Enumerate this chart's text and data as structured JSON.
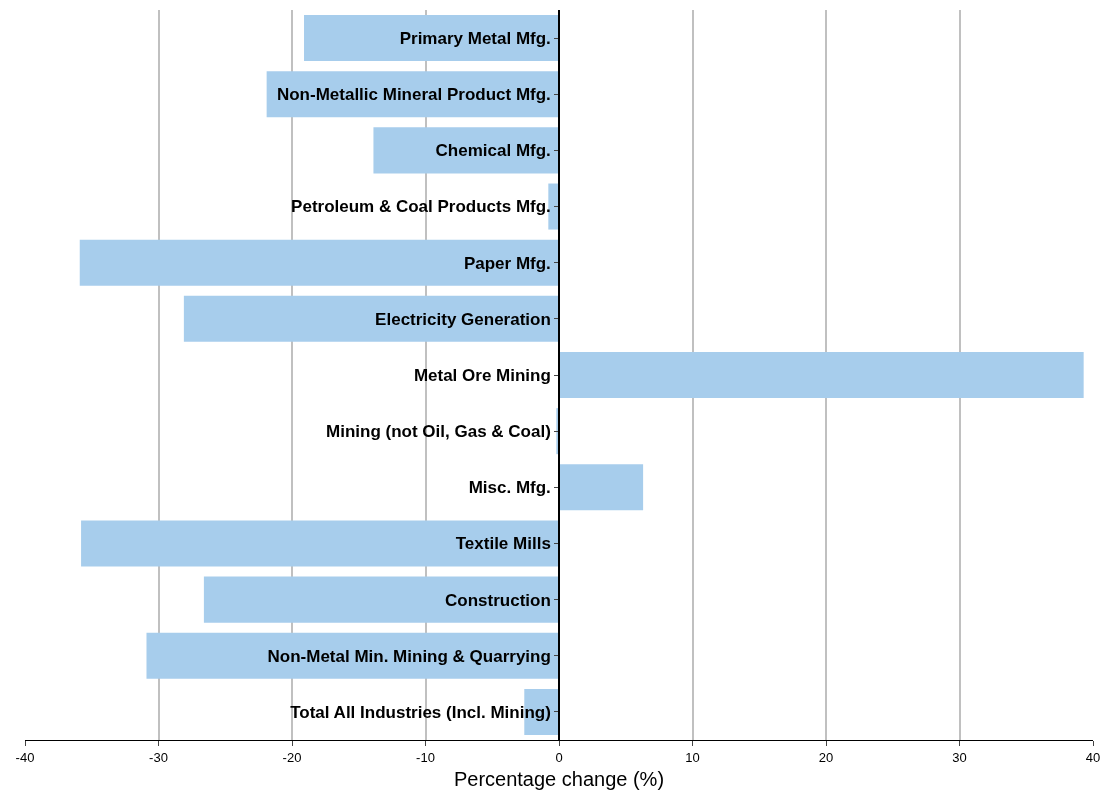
{
  "chart_data": {
    "type": "bar",
    "orientation": "horizontal",
    "xlabel": "Percentage change (%)",
    "categories": [
      "Primary Metal Mfg.",
      "Non-Metallic Mineral Product Mfg.",
      "Chemical Mfg.",
      "Petroleum & Coal Products Mfg.",
      "Paper Mfg.",
      "Electricity Generation",
      "Metal Ore Mining",
      "Mining (not Oil, Gas & Coal)",
      "Misc. Mfg.",
      "Textile Mills",
      "Construction",
      "Non-Metal Min. Mining & Quarrying",
      "Total All Industries (Incl. Mining)"
    ],
    "values": [
      -19.1,
      -21.9,
      -13.9,
      -0.8,
      -35.9,
      -28.1,
      39.3,
      -0.2,
      6.3,
      -35.8,
      -26.6,
      -30.9,
      -2.6
    ],
    "color": "#a7cdec",
    "xlim": [
      -40,
      40
    ],
    "xticks": [
      -40,
      -30,
      -20,
      -10,
      0,
      10,
      20,
      30,
      40
    ],
    "grid": "x"
  }
}
